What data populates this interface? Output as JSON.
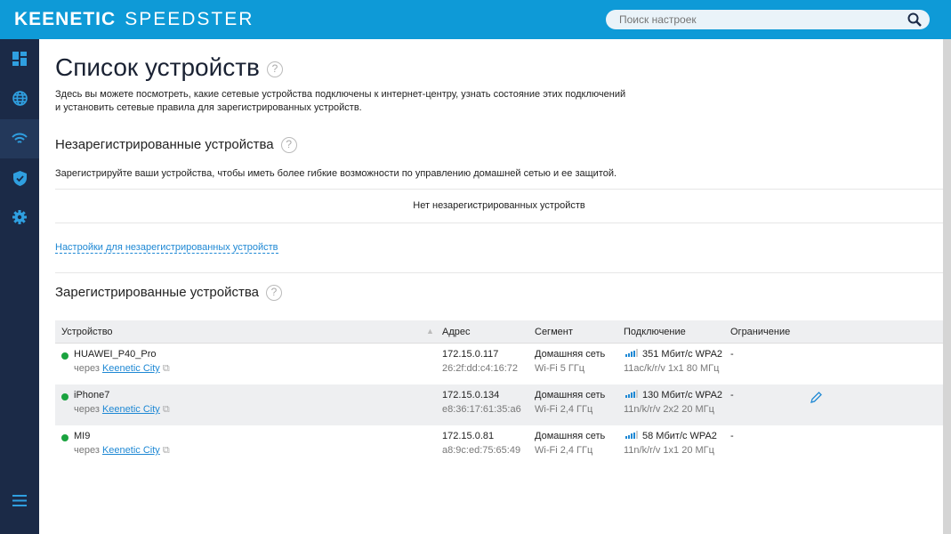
{
  "header": {
    "logo": "KEENETIC SPEEDSTER",
    "logo_brand": "KEENETIC",
    "logo_model": "SPEEDSTER",
    "search_placeholder": "Поиск настроек"
  },
  "sidebar": {
    "items": [
      {
        "icon": "dashboard-icon"
      },
      {
        "icon": "globe-icon"
      },
      {
        "icon": "wifi-icon",
        "active": true
      },
      {
        "icon": "shield-icon"
      },
      {
        "icon": "gear-icon"
      }
    ],
    "menu_icon": "menu-icon"
  },
  "page": {
    "title": "Список устройств",
    "help": "?",
    "intro_line1": "Здесь вы можете посмотреть, какие сетевые устройства подключены к интернет-центру, узнать состояние этих подключений",
    "intro_line2": "и установить сетевые правила для зарегистрированных устройств."
  },
  "unregistered": {
    "title": "Незарегистрированные устройства",
    "description": "Зарегистрируйте ваши устройства, чтобы иметь более гибкие возможности по управлению домашней сетью и ее защитой.",
    "empty": "Нет незарегистрированных устройств",
    "settings_link": "Настройки для незарегистрированных устройств"
  },
  "registered": {
    "title": "Зарегистрированные устройства",
    "columns": [
      "Устройство",
      "Адрес",
      "Сегмент",
      "Подключение",
      "Ограничение"
    ],
    "rows": [
      {
        "name": "HUAWEI_P40_Pro",
        "via": "через",
        "via_link": "Keenetic City",
        "ip": "172.15.0.117",
        "mac": "26:2f:dd:c4:16:72",
        "segment": "Домашняя сеть",
        "band": "Wi-Fi 5 ГГц",
        "speed": "351 Мбит/с WPA2",
        "mode": "11ac/k/r/v 1x1 80 МГц",
        "limit": "-",
        "signal": 4
      },
      {
        "name": "iPhone7",
        "via": "через",
        "via_link": "Keenetic City",
        "ip": "172.15.0.134",
        "mac": "e8:36:17:61:35:a6",
        "segment": "Домашняя сеть",
        "band": "Wi-Fi 2,4 ГГц",
        "speed": "130 Мбит/с WPA2",
        "mode": "11n/k/r/v 2x2 20 МГц",
        "limit": "-",
        "signal": 4
      },
      {
        "name": "MI9",
        "via": "через",
        "via_link": "Keenetic City",
        "ip": "172.15.0.81",
        "mac": "a8:9c:ed:75:65:49",
        "segment": "Домашняя сеть",
        "band": "Wi-Fi 2,4 ГГц",
        "speed": "58 Мбит/с WPA2",
        "mode": "11n/k/r/v 1x1 20 МГц",
        "limit": "-",
        "signal": 4
      }
    ]
  },
  "colors": {
    "header": "#0e9ad7",
    "sidebar": "#1b2a47",
    "link": "#1e88d4",
    "online": "#1aa33f"
  }
}
